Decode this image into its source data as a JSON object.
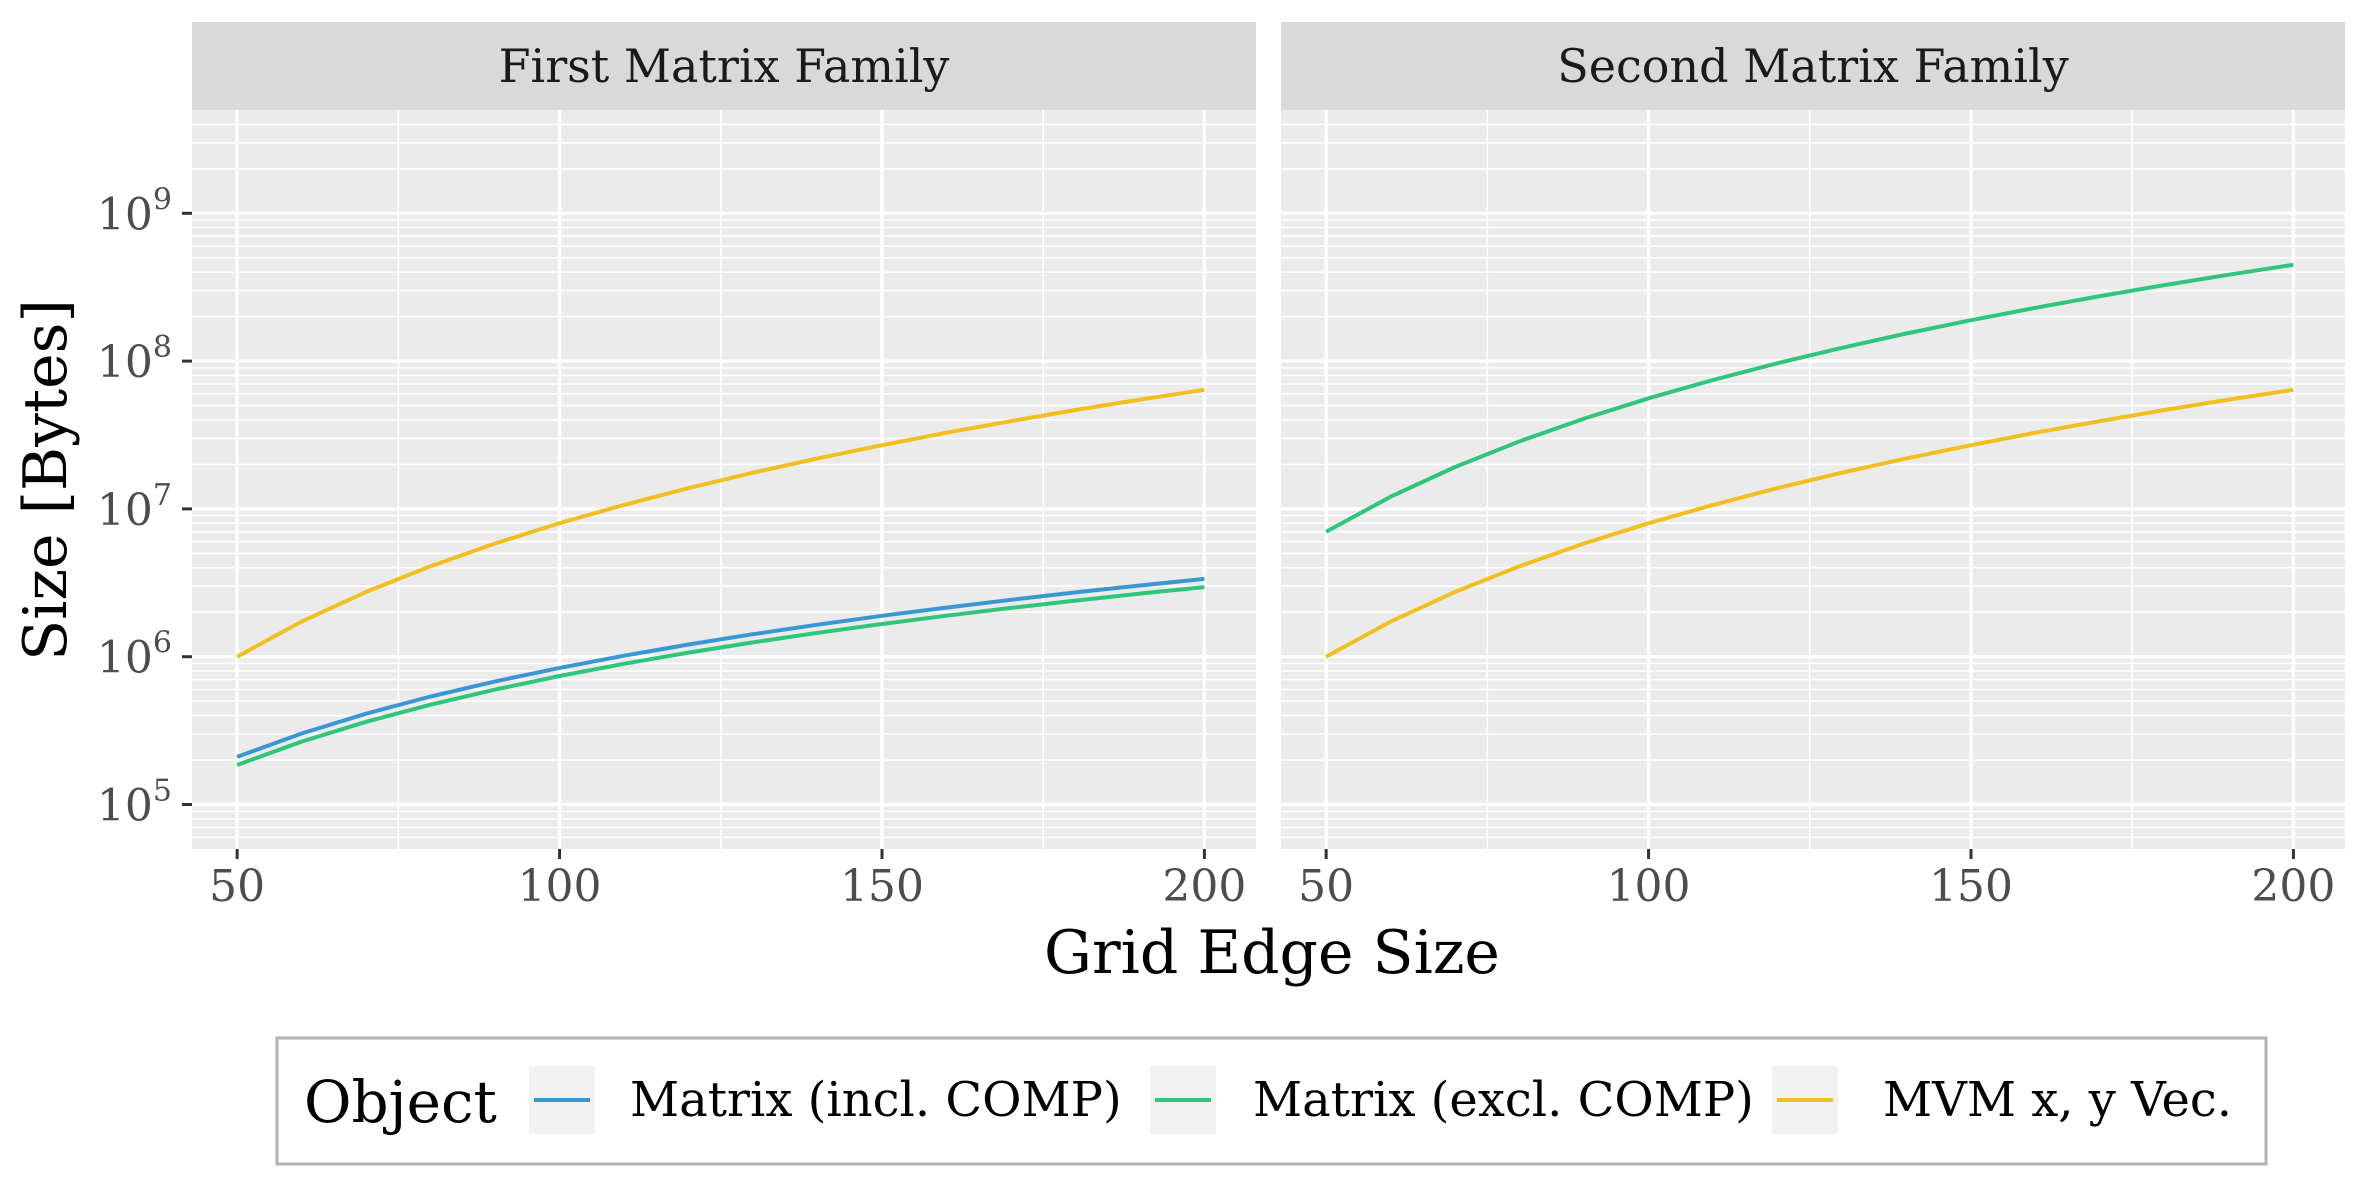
{
  "chart_data": {
    "type": "line",
    "facets": [
      "First Matrix Family",
      "Second Matrix Family"
    ],
    "xlabel": "Grid Edge Size",
    "ylabel": "Size [Bytes]",
    "xlim": [
      43,
      208
    ],
    "ylim": [
      50000,
      5000000000
    ],
    "y_scale": "log10",
    "x_ticks": [
      50,
      100,
      150,
      200
    ],
    "y_ticks": [
      100000,
      1000000,
      10000000,
      100000000,
      1000000000
    ],
    "y_tick_labels": [
      {
        "base": "10",
        "exp": "5"
      },
      {
        "base": "10",
        "exp": "6"
      },
      {
        "base": "10",
        "exp": "7"
      },
      {
        "base": "10",
        "exp": "8"
      },
      {
        "base": "10",
        "exp": "9"
      }
    ],
    "x": [
      50,
      60,
      70,
      80,
      90,
      100,
      110,
      120,
      130,
      140,
      150,
      160,
      170,
      180,
      190,
      200
    ],
    "panels": [
      {
        "facet": "First Matrix Family",
        "series": [
          {
            "key": "incl",
            "values": [
              210000,
              302400,
              411600,
              537600,
              680400,
              840000,
              1016400,
              1209600,
              1419600,
              1646400,
              1890000,
              2150400,
              2427600,
              2721600,
              3032400,
              3360000
            ]
          },
          {
            "key": "excl",
            "values": [
              185000,
              266400,
              362600,
              473600,
              599400,
              740000,
              895400,
              1065600,
              1250600,
              1450400,
              1665000,
              1894400,
              2138600,
              2397600,
              2671400,
              2960000
            ]
          },
          {
            "key": "mvm",
            "values": [
              1000000,
              1728000,
              2744000,
              4096000,
              5832000,
              8000000,
              10648000,
              13824000,
              17576000,
              21952000,
              27000000,
              32768000,
              39304000,
              46656000,
              54872000,
              64000000
            ]
          }
        ]
      },
      {
        "facet": "Second Matrix Family",
        "series": [
          {
            "key": "excl",
            "values": [
              7000000,
              12096000,
              19208000,
              28672000,
              40824000,
              56000000,
              74536000,
              96768000,
              123032000,
              153664000,
              189000000,
              229376000,
              275128000,
              326592000,
              384104000,
              448000000
            ]
          },
          {
            "key": "mvm",
            "values": [
              1000000,
              1728000,
              2744000,
              4096000,
              5832000,
              8000000,
              10648000,
              13824000,
              17576000,
              21952000,
              27000000,
              32768000,
              39304000,
              46656000,
              54872000,
              64000000
            ]
          }
        ]
      }
    ],
    "legend": {
      "title": "Object",
      "position": "bottom",
      "entries": [
        {
          "key": "incl",
          "label": "Matrix (incl. COMP)",
          "color": "#3b97d3"
        },
        {
          "key": "excl",
          "label": "Matrix (excl. COMP)",
          "color": "#2fc57a"
        },
        {
          "key": "mvm",
          "label": "MVM x, y Vec.",
          "color": "#f0c020"
        }
      ]
    },
    "grid": true,
    "panel_background": "#ebebeb",
    "strip_background": "#d9d9d9"
  }
}
